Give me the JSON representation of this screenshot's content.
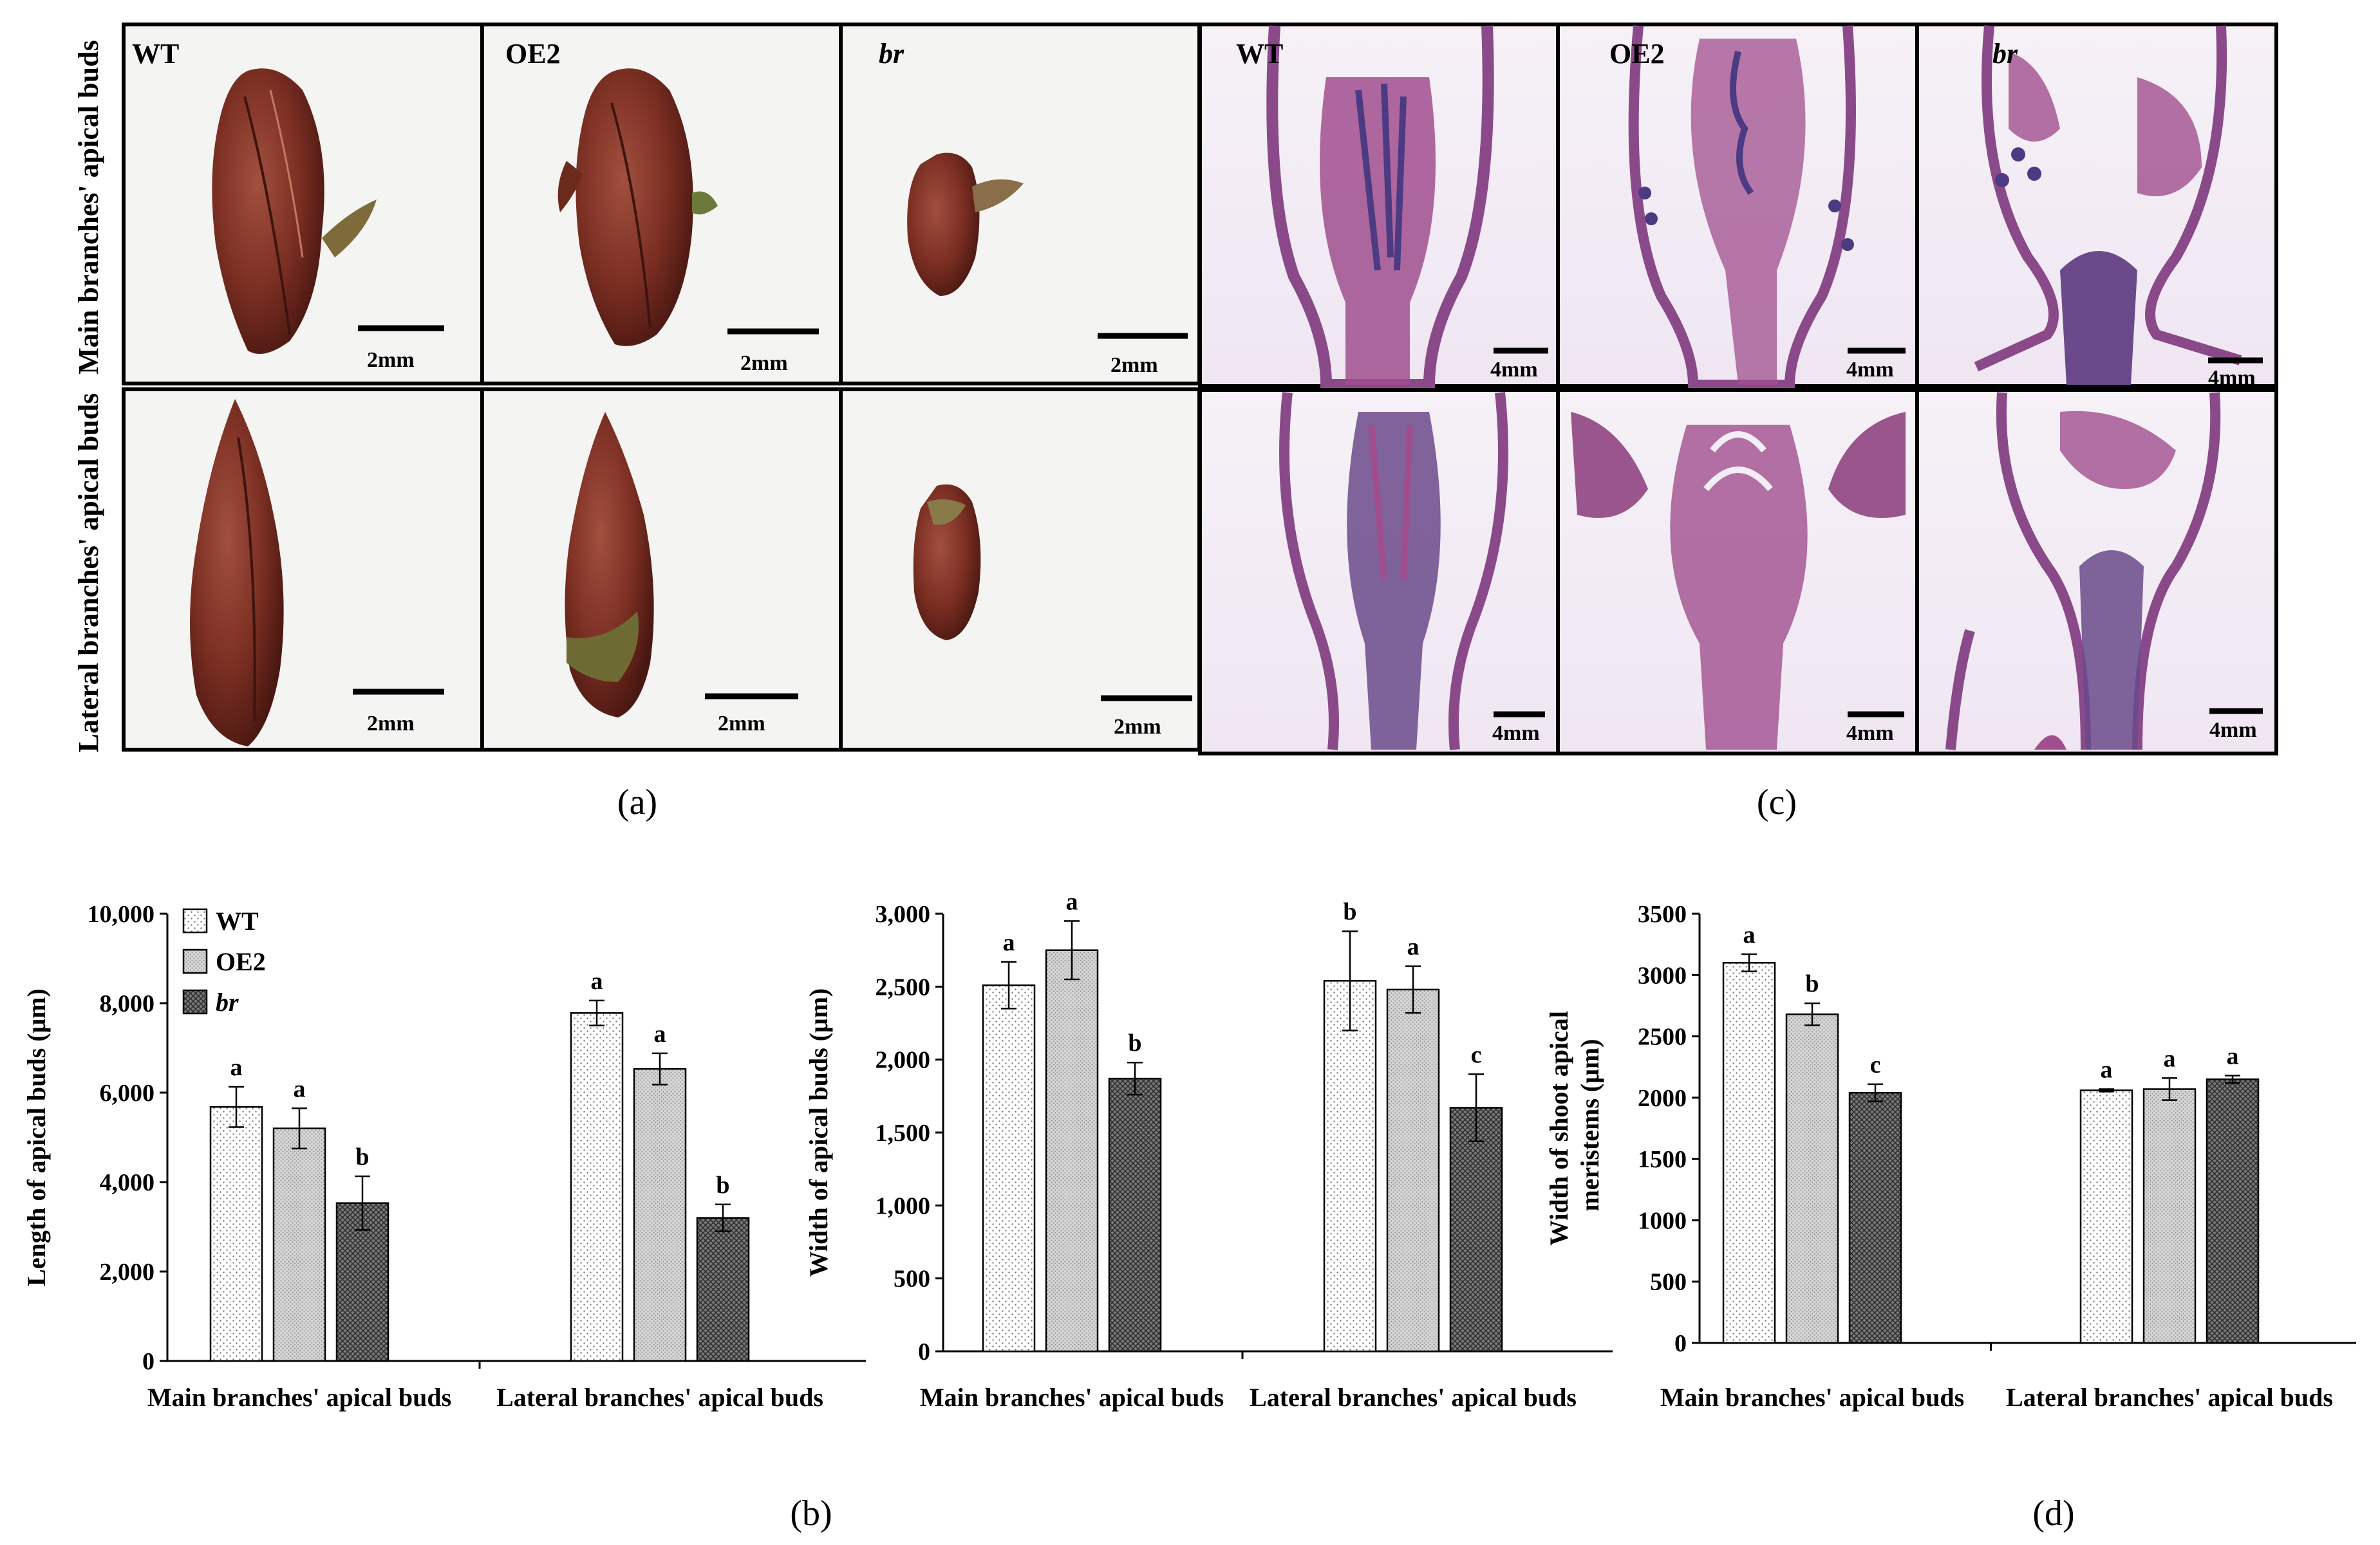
{
  "photos": {
    "panel_a": {
      "caption": "(a)",
      "row_labels": [
        "Main branches' apical buds",
        "Lateral branches' apical buds"
      ],
      "col_labels": [
        "WT",
        "OE2",
        "br"
      ],
      "scale_bar": "2mm"
    },
    "panel_c": {
      "caption": "(c)",
      "col_labels": [
        "WT",
        "OE2",
        "br"
      ],
      "scale_bar": "4mm"
    },
    "colors": {
      "bud": "#7a2e22",
      "bud_dark": "#4a1812",
      "bud_green": "#6b7a3a",
      "tissue": "#a04f8e",
      "tissue_dark": "#4c3a82",
      "tissue_bg": "#f3eef5"
    }
  },
  "legend": {
    "items": [
      "WT",
      "OE2",
      "br"
    ]
  },
  "chart_data": [
    {
      "type": "bar",
      "caption": "(b)",
      "ylabel": "Length of apical buds (μm)",
      "categories": [
        "Main branches' apical buds",
        "Lateral branches' apical buds"
      ],
      "ylim": [
        0,
        10000
      ],
      "yticks": [
        0,
        2000,
        4000,
        6000,
        8000,
        10000
      ],
      "ytick_labels": [
        "0",
        "2,000",
        "4,000",
        "6,000",
        "8,000",
        "10,000"
      ],
      "series": [
        {
          "name": "WT",
          "values": [
            5680,
            7780
          ],
          "errors": [
            450,
            280
          ],
          "letters": [
            "a",
            "a"
          ]
        },
        {
          "name": "OE2",
          "values": [
            5200,
            6530
          ],
          "errors": [
            450,
            350
          ],
          "letters": [
            "a",
            "a"
          ]
        },
        {
          "name": "br",
          "values": [
            3530,
            3200
          ],
          "errors": [
            600,
            300
          ],
          "letters": [
            "b",
            "b"
          ]
        }
      ]
    },
    {
      "type": "bar",
      "caption": "",
      "ylabel": "Width of apical buds  (μm)",
      "categories": [
        "Main branches' apical buds",
        "Lateral branches' apical buds"
      ],
      "ylim": [
        0,
        3000
      ],
      "yticks": [
        0,
        500,
        1000,
        1500,
        2000,
        2500,
        3000
      ],
      "ytick_labels": [
        "0",
        "500",
        "1,000",
        "1,500",
        "2,000",
        "2,500",
        "3,000"
      ],
      "series": [
        {
          "name": "WT",
          "values": [
            2510,
            2540
          ],
          "errors": [
            160,
            340
          ],
          "letters": [
            "a",
            "b"
          ]
        },
        {
          "name": "OE2",
          "values": [
            2750,
            2480
          ],
          "errors": [
            200,
            160
          ],
          "letters": [
            "a",
            "a"
          ]
        },
        {
          "name": "br",
          "values": [
            1870,
            1670
          ],
          "errors": [
            110,
            230
          ],
          "letters": [
            "b",
            "c"
          ]
        }
      ]
    },
    {
      "type": "bar",
      "caption": "(d)",
      "ylabel": "Width of shoot apical meristems (μm)",
      "categories": [
        "Main branches' apical buds",
        "Lateral branches' apical buds"
      ],
      "ylim": [
        0,
        3500
      ],
      "yticks": [
        0,
        500,
        1000,
        1500,
        2000,
        2500,
        3000,
        3500
      ],
      "ytick_labels": [
        "0",
        "500",
        "1000",
        "1500",
        "2000",
        "2500",
        "3000",
        "3500"
      ],
      "series": [
        {
          "name": "WT",
          "values": [
            3100,
            2060
          ],
          "errors": [
            70,
            10
          ],
          "letters": [
            "a",
            "a"
          ]
        },
        {
          "name": "OE2",
          "values": [
            2680,
            2070
          ],
          "errors": [
            90,
            90
          ],
          "letters": [
            "b",
            "a"
          ]
        },
        {
          "name": "br",
          "values": [
            2040,
            2150
          ],
          "errors": [
            70,
            30
          ],
          "letters": [
            "c",
            "a"
          ]
        }
      ]
    }
  ]
}
